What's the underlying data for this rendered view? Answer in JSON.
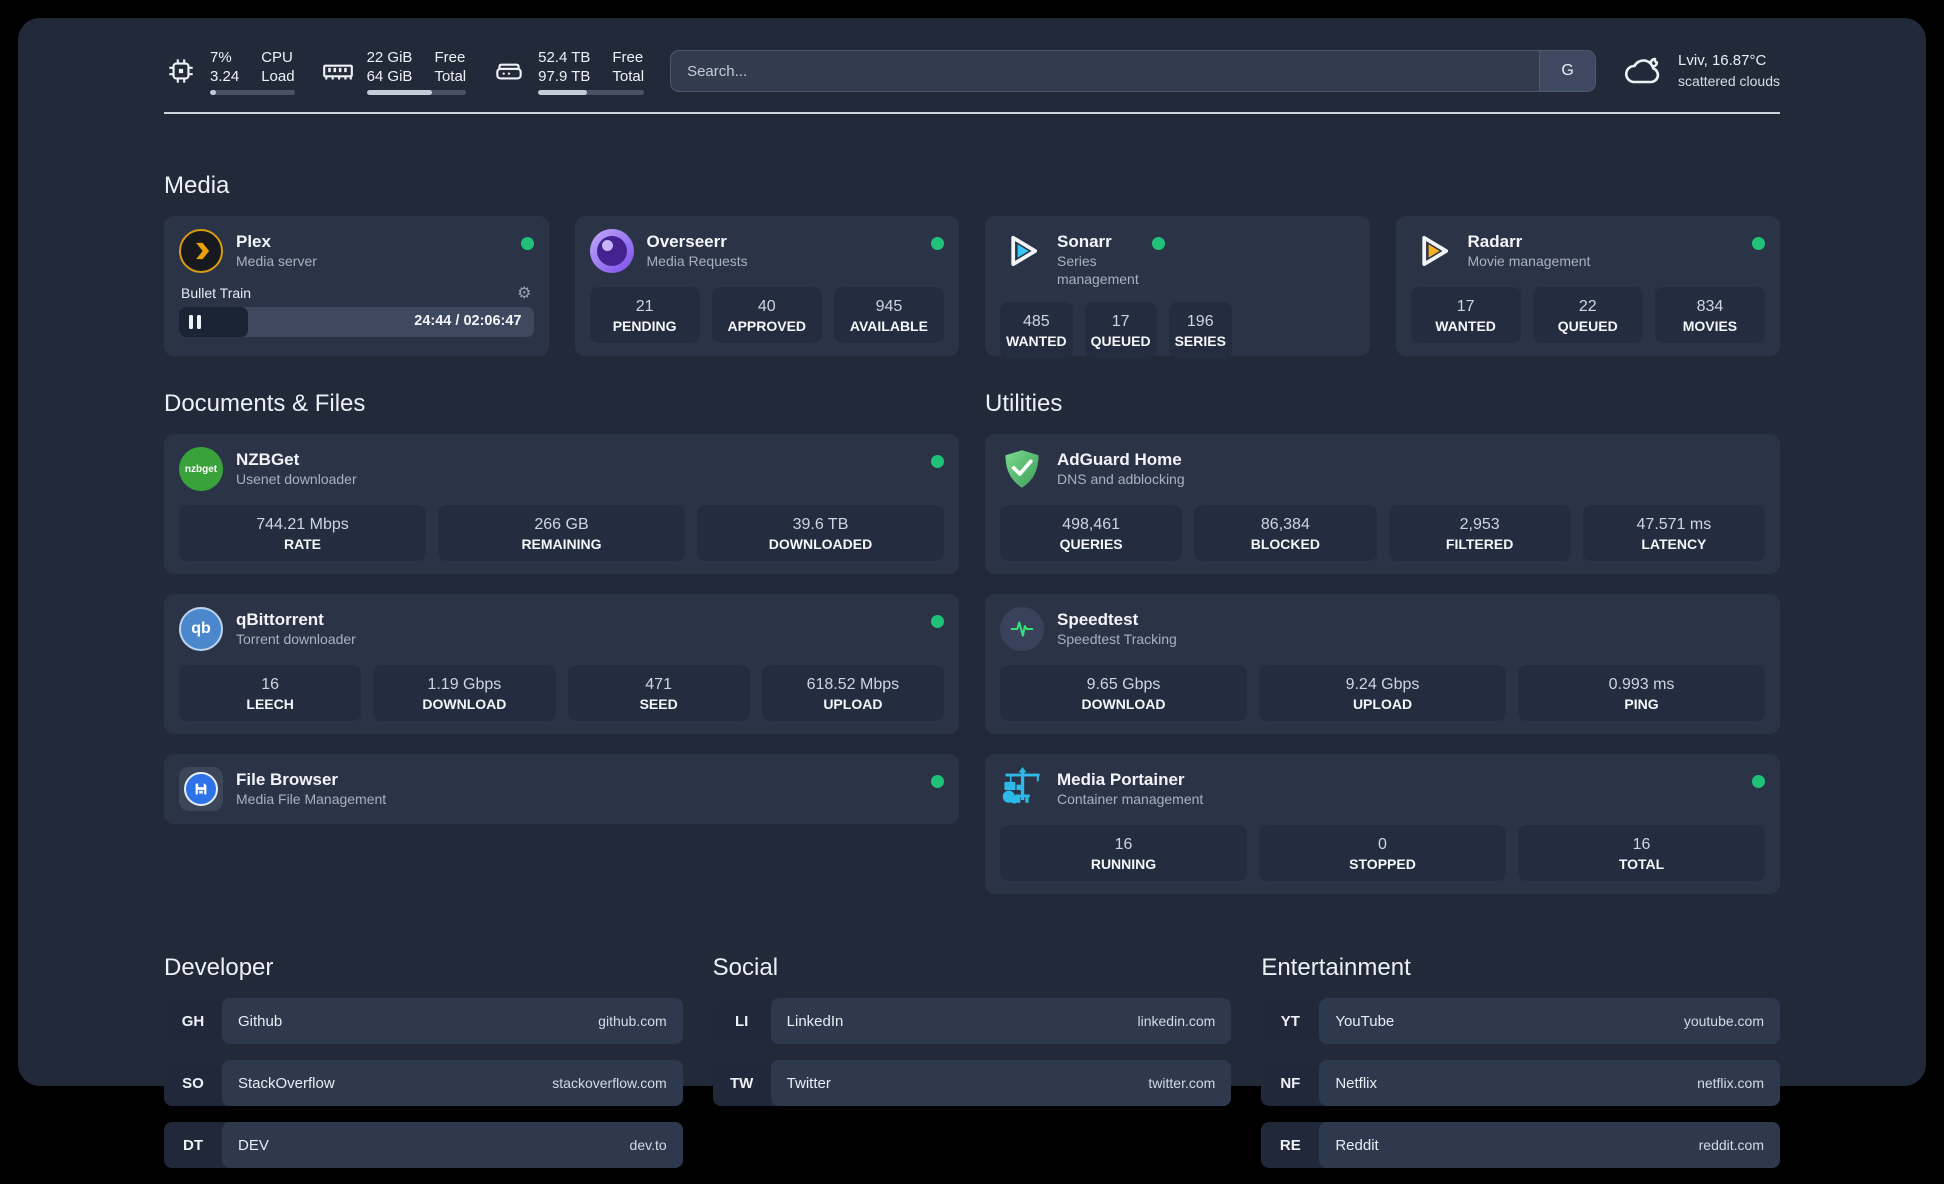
{
  "theme": {
    "background": "#222a3a",
    "card": "#2b3447",
    "status_green": "#1fc278",
    "plex_amber": "#e5a00d",
    "sonarr_blue": "#38c6f4",
    "radarr_yellow": "#f7b126",
    "portainer_blue": "#2fb9e8",
    "adguard_green": "#5cc271",
    "qbittorrent_blue": "#4b87cc",
    "nzbget_green": "#3aa23a",
    "overseerr_purple": "#8b5cf6"
  },
  "topbar": {
    "cpu": {
      "value_top": "7%",
      "value_bottom": "3.24",
      "label_top": "CPU",
      "label_bottom": "Load",
      "bar_percent": 7
    },
    "memory": {
      "value_top": "22 GiB",
      "value_bottom": "64 GiB",
      "label_top": "Free",
      "label_bottom": "Total",
      "bar_percent": 66
    },
    "disk": {
      "value_top": "52.4 TB",
      "value_bottom": "97.9 TB",
      "label_top": "Free",
      "label_bottom": "Total",
      "bar_percent": 46
    },
    "search": {
      "placeholder": "Search...",
      "button_label": "G"
    },
    "weather": {
      "location_temp": "Lviv, 16.87°C",
      "condition": "scattered clouds"
    }
  },
  "media": {
    "title": "Media",
    "plex": {
      "name": "Plex",
      "desc": "Media server",
      "now_playing": "Bullet Train",
      "time": "24:44 / 02:06:47",
      "progress_percent": 19.5
    },
    "overseerr": {
      "name": "Overseerr",
      "desc": "Media Requests",
      "stats": [
        {
          "value": "21",
          "label": "PENDING"
        },
        {
          "value": "40",
          "label": "APPROVED"
        },
        {
          "value": "945",
          "label": "AVAILABLE"
        }
      ]
    },
    "sonarr": {
      "name": "Sonarr",
      "desc": "Series management",
      "stats": [
        {
          "value": "485",
          "label": "WANTED"
        },
        {
          "value": "17",
          "label": "QUEUED"
        },
        {
          "value": "196",
          "label": "SERIES"
        }
      ]
    },
    "radarr": {
      "name": "Radarr",
      "desc": "Movie management",
      "stats": [
        {
          "value": "17",
          "label": "WANTED"
        },
        {
          "value": "22",
          "label": "QUEUED"
        },
        {
          "value": "834",
          "label": "MOVIES"
        }
      ]
    }
  },
  "documents": {
    "title": "Documents & Files",
    "nzbget": {
      "name": "NZBGet",
      "desc": "Usenet downloader",
      "logo_text": "nzbget",
      "stats": [
        {
          "value": "744.21 Mbps",
          "label": "RATE"
        },
        {
          "value": "266 GB",
          "label": "REMAINING"
        },
        {
          "value": "39.6 TB",
          "label": "DOWNLOADED"
        }
      ]
    },
    "qbittorrent": {
      "name": "qBittorrent",
      "desc": "Torrent downloader",
      "logo_text": "qb",
      "stats": [
        {
          "value": "16",
          "label": "LEECH"
        },
        {
          "value": "1.19 Gbps",
          "label": "DOWNLOAD"
        },
        {
          "value": "471",
          "label": "SEED"
        },
        {
          "value": "618.52 Mbps",
          "label": "UPLOAD"
        }
      ]
    },
    "filebrowser": {
      "name": "File Browser",
      "desc": "Media File Management"
    }
  },
  "utilities": {
    "title": "Utilities",
    "adguard": {
      "name": "AdGuard Home",
      "desc": "DNS and adblocking",
      "stats": [
        {
          "value": "498,461",
          "label": "QUERIES"
        },
        {
          "value": "86,384",
          "label": "BLOCKED"
        },
        {
          "value": "2,953",
          "label": "FILTERED"
        },
        {
          "value": "47.571 ms",
          "label": "LATENCY"
        }
      ]
    },
    "speedtest": {
      "name": "Speedtest",
      "desc": "Speedtest Tracking",
      "stats": [
        {
          "value": "9.65 Gbps",
          "label": "DOWNLOAD"
        },
        {
          "value": "9.24 Gbps",
          "label": "UPLOAD"
        },
        {
          "value": "0.993 ms",
          "label": "PING"
        }
      ]
    },
    "portainer": {
      "name": "Media Portainer",
      "desc": "Container management",
      "stats": [
        {
          "value": "16",
          "label": "RUNNING"
        },
        {
          "value": "0",
          "label": "STOPPED"
        },
        {
          "value": "16",
          "label": "TOTAL"
        }
      ]
    }
  },
  "bookmarks": {
    "developer": {
      "title": "Developer",
      "items": [
        {
          "abbr": "GH",
          "name": "Github",
          "domain": "github.com"
        },
        {
          "abbr": "SO",
          "name": "StackOverflow",
          "domain": "stackoverflow.com"
        },
        {
          "abbr": "DT",
          "name": "DEV",
          "domain": "dev.to"
        }
      ]
    },
    "social": {
      "title": "Social",
      "items": [
        {
          "abbr": "LI",
          "name": "LinkedIn",
          "domain": "linkedin.com"
        },
        {
          "abbr": "TW",
          "name": "Twitter",
          "domain": "twitter.com"
        }
      ]
    },
    "entertainment": {
      "title": "Entertainment",
      "items": [
        {
          "abbr": "YT",
          "name": "YouTube",
          "domain": "youtube.com"
        },
        {
          "abbr": "NF",
          "name": "Netflix",
          "domain": "netflix.com"
        },
        {
          "abbr": "RE",
          "name": "Reddit",
          "domain": "reddit.com"
        }
      ]
    }
  }
}
